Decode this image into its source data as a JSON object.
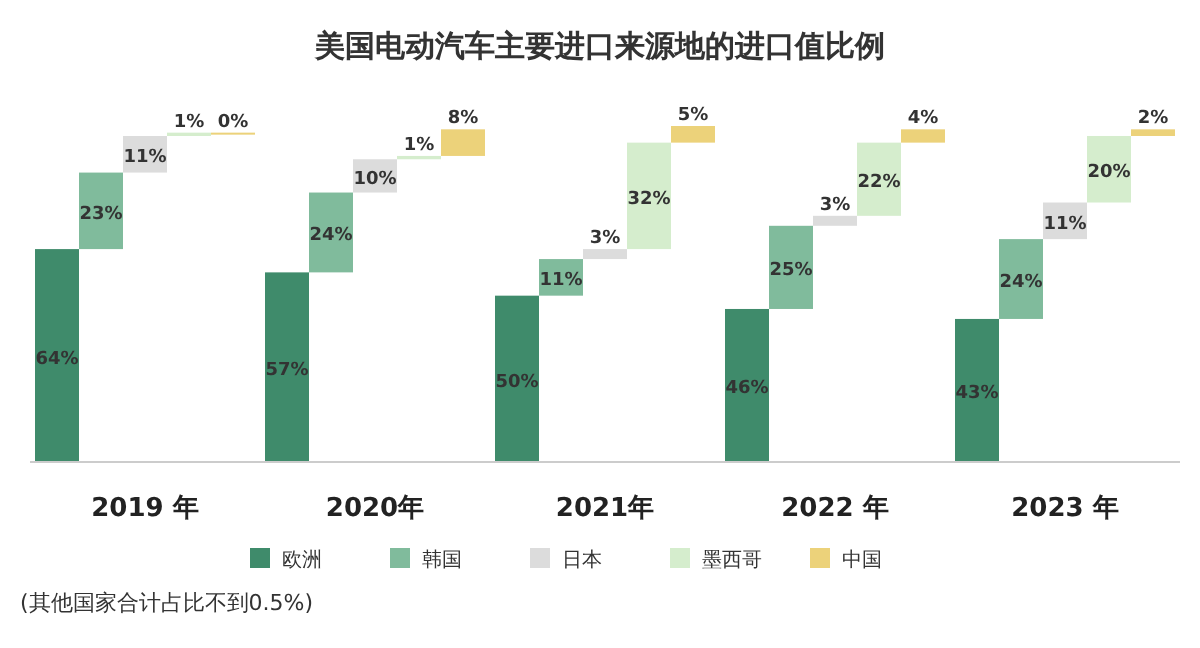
{
  "chart_data": {
    "type": "bar",
    "title": "美国电动汽车主要进口来源地的进口值比例",
    "categories": [
      "2019 年",
      "2020年",
      "2021年",
      "2022 年",
      "2023 年"
    ],
    "stacked": true,
    "legend": "bottom",
    "series": [
      {
        "name": "欧洲",
        "color": "#3f8b6b",
        "values": [
          64,
          57,
          50,
          46,
          43
        ],
        "value_labels": [
          "64%",
          "57%",
          "50%",
          "46%",
          "43%"
        ]
      },
      {
        "name": "韩国",
        "color": "#80bb9c",
        "values": [
          23,
          24,
          11,
          25,
          24
        ],
        "value_labels": [
          "23%",
          "24%",
          "11%",
          "25%",
          "24%"
        ]
      },
      {
        "name": "日本",
        "color": "#dcdcdc",
        "values": [
          11,
          10,
          3,
          3,
          11
        ],
        "value_labels": [
          "11%",
          "10%",
          "3%",
          "3%",
          "11%"
        ]
      },
      {
        "name": "墨西哥",
        "color": "#d5edcd",
        "values": [
          1,
          1,
          32,
          22,
          20
        ],
        "value_labels": [
          "1%",
          "1%",
          "32%",
          "22%",
          "20%"
        ]
      },
      {
        "name": "中国",
        "color": "#ecd27a",
        "values": [
          0,
          8,
          5,
          4,
          2
        ],
        "value_labels": [
          "0%",
          "8%",
          "5%",
          "4%",
          "2%"
        ]
      }
    ],
    "annotations": [
      "(其他国家合计占比不到0.5%)"
    ]
  }
}
